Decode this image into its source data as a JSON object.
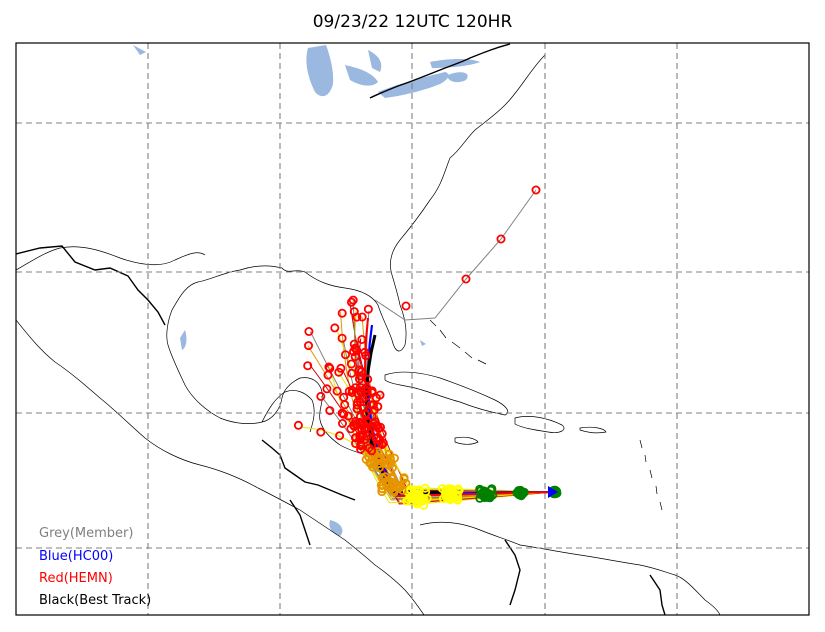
{
  "title": "09/23/22 12UTC 120HR",
  "legend": [
    {
      "label": "Grey(Member)",
      "color": "#808080"
    },
    {
      "label": "Blue(HC00)",
      "color": "#0000ff"
    },
    {
      "label": "Red(HEMN)",
      "color": "#ff0000"
    },
    {
      "label": "Black(Best Track)",
      "color": "#000000"
    }
  ],
  "colors": {
    "water": "#9ab8e0",
    "grid": "#808080",
    "member_track": "#808080",
    "hc00_track": "#0000ff",
    "hemn_track": "#ff0000",
    "best_track": "#000000"
  },
  "point_colors": [
    "#ff0000",
    "#e69500",
    "#ffff00",
    "#008000"
  ]
}
